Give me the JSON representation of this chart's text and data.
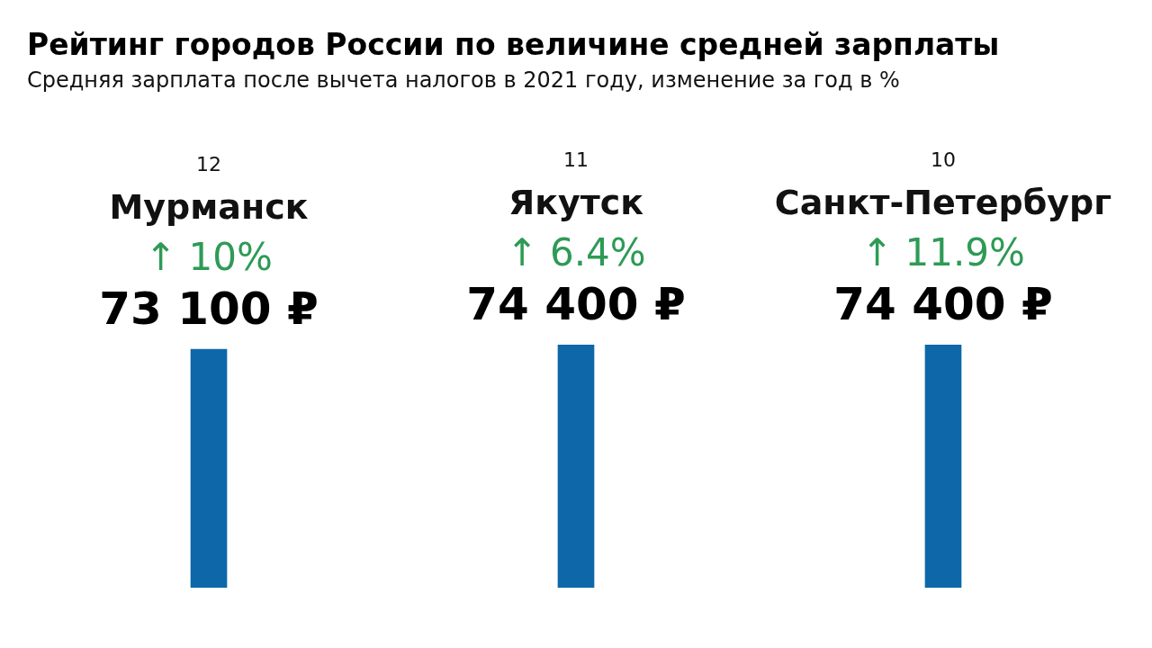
{
  "chart_data": {
    "type": "bar",
    "title": "Рейтинг городов России по величине средней зарплаты",
    "subtitle": "Средняя зарплата после вычета налогов в 2021 году, изменение за год в %",
    "categories": [
      "Мурманск",
      "Якутск",
      "Санкт-Петербург"
    ],
    "values": [
      73100,
      74400,
      74400
    ],
    "color": "#0d67a8",
    "value_labels": [
      "73 100 ₽",
      "74 400 ₽",
      "74 400 ₽"
    ],
    "annotations": [
      "12",
      "11",
      "10",
      "↑ 10%",
      "↑ 6.4%",
      "↑ 11.9%"
    ]
  }
}
